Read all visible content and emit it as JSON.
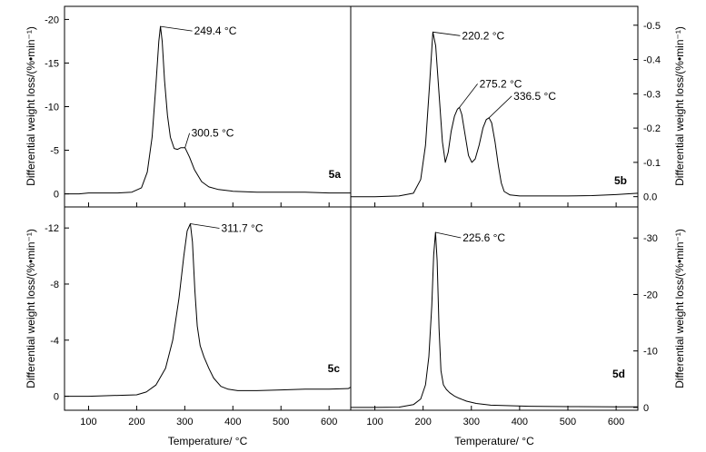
{
  "chart_data": [
    {
      "type": "line",
      "panel_label": "5a",
      "xlabel": "",
      "ylabel": "Differential weight loss/(%•min⁻¹)",
      "xlim": [
        50,
        645
      ],
      "ylim": [
        1.5,
        -21.5
      ],
      "y_ticks": [
        -20,
        -15,
        -10,
        -5,
        0
      ],
      "y_tick_labels": [
        "-20",
        "-15",
        "-10",
        "-5",
        "0"
      ],
      "x": [
        50,
        80,
        100,
        130,
        160,
        190,
        210,
        222,
        232,
        240,
        246,
        249.4,
        253,
        258,
        264,
        270,
        278,
        285,
        292,
        300.5,
        310,
        320,
        335,
        350,
        370,
        400,
        450,
        500,
        550,
        600,
        645
      ],
      "y": [
        0,
        0,
        -0.1,
        -0.1,
        -0.1,
        -0.2,
        -0.7,
        -2.5,
        -6.5,
        -12.5,
        -17.5,
        -19.2,
        -17.5,
        -13,
        -9,
        -6.5,
        -5.2,
        -5.1,
        -5.3,
        -5.3,
        -4.2,
        -2.8,
        -1.4,
        -0.8,
        -0.5,
        -0.3,
        -0.2,
        -0.2,
        -0.2,
        -0.1,
        -0.1
      ],
      "annotations": [
        {
          "text": "249.4 °C",
          "x": 249.4,
          "y": -19.2
        },
        {
          "text": "300.5 °C",
          "x": 300.5,
          "y": -5.3
        }
      ]
    },
    {
      "type": "line",
      "panel_label": "5b",
      "xlabel": "",
      "ylabel": "Differential weight loss/(%•min⁻¹)",
      "xlim": [
        50,
        645
      ],
      "ylim": [
        0.03,
        -0.555
      ],
      "y_ticks": [
        -0.5,
        -0.4,
        -0.3,
        -0.2,
        -0.1,
        0.0
      ],
      "y_tick_labels": [
        "-0.5",
        "-0.4",
        "-0.3",
        "-0.2",
        "-0.1",
        "0.0"
      ],
      "x": [
        50,
        100,
        150,
        180,
        195,
        205,
        213,
        220.2,
        226,
        233,
        240,
        246,
        252,
        258,
        265,
        271,
        275.2,
        280,
        287,
        294,
        301,
        308,
        316,
        324,
        331,
        336.5,
        342,
        349,
        356,
        362,
        368,
        380,
        400,
        450,
        500,
        550,
        600,
        645
      ],
      "y": [
        0,
        0,
        -0.002,
        -0.01,
        -0.05,
        -0.15,
        -0.32,
        -0.48,
        -0.44,
        -0.3,
        -0.16,
        -0.1,
        -0.13,
        -0.19,
        -0.235,
        -0.255,
        -0.26,
        -0.24,
        -0.18,
        -0.12,
        -0.1,
        -0.11,
        -0.15,
        -0.2,
        -0.225,
        -0.23,
        -0.215,
        -0.16,
        -0.09,
        -0.04,
        -0.015,
        -0.005,
        -0.002,
        -0.002,
        -0.002,
        -0.003,
        -0.006,
        -0.01
      ],
      "annotations": [
        {
          "text": "220.2 °C",
          "x": 220.2,
          "y": -0.48
        },
        {
          "text": "275.2 °C",
          "x": 275.2,
          "y": -0.26
        },
        {
          "text": "336.5 °C",
          "x": 336.5,
          "y": -0.23
        }
      ]
    },
    {
      "type": "line",
      "panel_label": "5c",
      "xlabel": "Temperature/ °C",
      "ylabel": "Differential weight loss/(%•min⁻¹)",
      "xlim": [
        50,
        645
      ],
      "ylim": [
        1.0,
        -13.5
      ],
      "y_ticks": [
        -12,
        -8,
        -4,
        0
      ],
      "y_tick_labels": [
        "-12",
        "-8",
        "-4",
        "0"
      ],
      "x_ticks": [
        100,
        200,
        300,
        400,
        500,
        600
      ],
      "x_tick_labels": [
        "100",
        "200",
        "300",
        "400",
        "500",
        "600"
      ],
      "x": [
        50,
        100,
        150,
        200,
        220,
        240,
        260,
        275,
        288,
        298,
        305,
        311.7,
        316,
        321,
        326,
        332,
        340,
        350,
        360,
        375,
        390,
        410,
        450,
        500,
        550,
        600,
        640,
        645
      ],
      "y": [
        0,
        0,
        -0.05,
        -0.1,
        -0.3,
        -0.8,
        -2,
        -4,
        -7,
        -10,
        -11.8,
        -12.3,
        -11,
        -7.5,
        -5,
        -3.6,
        -2.8,
        -2,
        -1.3,
        -0.7,
        -0.5,
        -0.4,
        -0.4,
        -0.45,
        -0.5,
        -0.5,
        -0.55,
        -0.65
      ],
      "annotations": [
        {
          "text": "311.7 °C",
          "x": 311.7,
          "y": -12.3
        }
      ]
    },
    {
      "type": "line",
      "panel_label": "5d",
      "xlabel": "Temperature/ °C",
      "ylabel": "Differential weight loss/(%•min⁻¹)",
      "xlim": [
        50,
        645
      ],
      "ylim": [
        0.5,
        -35.5
      ],
      "y_ticks": [
        -30,
        -20,
        -10,
        0
      ],
      "y_tick_labels": [
        "-30",
        "-20",
        "-10",
        "0"
      ],
      "x_ticks": [
        100,
        200,
        300,
        400,
        500,
        600
      ],
      "x_tick_labels": [
        "100",
        "200",
        "300",
        "400",
        "500",
        "600"
      ],
      "x": [
        50,
        100,
        150,
        180,
        195,
        205,
        212,
        218,
        222,
        225.6,
        229,
        233,
        237,
        242,
        248,
        255,
        265,
        275,
        290,
        310,
        340,
        380,
        420,
        500,
        600,
        645
      ],
      "y": [
        0,
        0,
        -0.05,
        -0.5,
        -1.5,
        -4,
        -9,
        -18,
        -27,
        -31,
        -26,
        -14,
        -6.5,
        -4,
        -3.2,
        -2.6,
        -2,
        -1.6,
        -1.1,
        -0.7,
        -0.4,
        -0.3,
        -0.2,
        -0.15,
        -0.1,
        -0.1
      ],
      "annotations": [
        {
          "text": "225.6 °C",
          "x": 225.6,
          "y": -31
        }
      ]
    }
  ]
}
